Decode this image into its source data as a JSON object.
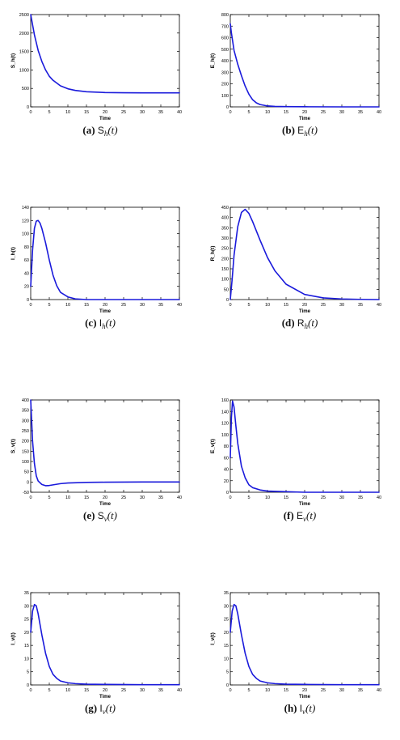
{
  "chart_data": [
    {
      "type": "line",
      "xlabel": "Time",
      "ylabel": "S_h(t)",
      "xlim": [
        0,
        40
      ],
      "ylim": [
        0,
        2500
      ],
      "xticks": [
        0,
        5,
        10,
        15,
        20,
        25,
        30,
        35,
        40
      ],
      "yticks": [
        0,
        500,
        1000,
        1500,
        2000,
        2500
      ],
      "ytick_labels": [
        "0",
        "500",
        "1000",
        "1500",
        "2000",
        "2500"
      ],
      "x": [
        0,
        1,
        2,
        3,
        4,
        5,
        6,
        8,
        10,
        12,
        15,
        20,
        25,
        30,
        35,
        40
      ],
      "y": [
        2500,
        1950,
        1530,
        1230,
        1000,
        830,
        720,
        570,
        490,
        445,
        410,
        388,
        382,
        380,
        380,
        380
      ],
      "caption": {
        "label": "(a)",
        "symbol": "S",
        "sub": "h",
        "arg": "(t)"
      }
    },
    {
      "type": "line",
      "xlabel": "Time",
      "ylabel": "E_h(t)",
      "xlim": [
        0,
        40
      ],
      "ylim": [
        0,
        800
      ],
      "xticks": [
        0,
        5,
        10,
        15,
        20,
        25,
        30,
        35,
        40
      ],
      "yticks": [
        0,
        100,
        200,
        300,
        400,
        500,
        600,
        700,
        800
      ],
      "ytick_labels": [
        "0",
        "100",
        "200",
        "300",
        "400",
        "500",
        "600",
        "700",
        "800"
      ],
      "x": [
        0,
        0.3,
        1,
        2,
        3,
        4,
        5,
        6,
        7,
        8,
        10,
        12,
        15,
        20,
        30,
        40
      ],
      "y": [
        720,
        640,
        490,
        370,
        270,
        180,
        110,
        62,
        35,
        20,
        8,
        4,
        2,
        1,
        0,
        0
      ],
      "caption": {
        "label": "(b)",
        "symbol": "E",
        "sub": "h",
        "arg": "(t)"
      }
    },
    {
      "type": "line",
      "xlabel": "Time",
      "ylabel": "I_h(t)",
      "xlim": [
        0,
        40
      ],
      "ylim": [
        0,
        140
      ],
      "xticks": [
        0,
        5,
        10,
        15,
        20,
        25,
        30,
        35,
        40
      ],
      "yticks": [
        0,
        20,
        40,
        60,
        80,
        100,
        120,
        140
      ],
      "ytick_labels": [
        "0",
        "20",
        "40",
        "60",
        "80",
        "100",
        "120",
        "140"
      ],
      "x": [
        0,
        0.5,
        1,
        1.5,
        2,
        2.5,
        3,
        4,
        5,
        6,
        7,
        8,
        10,
        12,
        15,
        20,
        30,
        40
      ],
      "y": [
        20,
        75,
        108,
        119,
        120,
        116,
        108,
        86,
        60,
        37,
        21,
        11,
        4,
        1,
        0,
        0,
        0,
        0
      ],
      "caption": {
        "label": "(c)",
        "symbol": "I",
        "sub": "h",
        "arg": "(t)"
      }
    },
    {
      "type": "line",
      "xlabel": "Time",
      "ylabel": "R_h(t)",
      "xlim": [
        0,
        40
      ],
      "ylim": [
        0,
        450
      ],
      "xticks": [
        0,
        5,
        10,
        15,
        20,
        25,
        30,
        35,
        40
      ],
      "yticks": [
        0,
        50,
        100,
        150,
        200,
        250,
        300,
        350,
        400,
        450
      ],
      "ytick_labels": [
        "0",
        "50",
        "100",
        "150",
        "200",
        "250",
        "300",
        "350",
        "400",
        "450"
      ],
      "x": [
        0,
        0.5,
        1,
        2,
        3,
        4,
        5,
        6,
        8,
        10,
        12,
        15,
        20,
        25,
        30,
        35,
        40
      ],
      "y": [
        0,
        100,
        215,
        355,
        425,
        440,
        420,
        380,
        290,
        205,
        140,
        75,
        25,
        8,
        3,
        1,
        0
      ],
      "caption": {
        "label": "(d)",
        "symbol": "R",
        "sub": "h",
        "arg": "(t)"
      }
    },
    {
      "type": "line",
      "xlabel": "Time",
      "ylabel": "S_v(t)",
      "xlim": [
        0,
        40
      ],
      "ylim": [
        -50,
        400
      ],
      "xticks": [
        0,
        5,
        10,
        15,
        20,
        25,
        30,
        35,
        40
      ],
      "yticks": [
        -50,
        0,
        50,
        100,
        150,
        200,
        250,
        300,
        350,
        400
      ],
      "ytick_labels": [
        "-50",
        "0",
        "50",
        "100",
        "150",
        "200",
        "250",
        "300",
        "350",
        "400"
      ],
      "x": [
        0,
        0.5,
        1,
        1.5,
        2,
        3,
        4,
        5,
        6,
        8,
        10,
        15,
        20,
        30,
        40
      ],
      "y": [
        400,
        200,
        90,
        30,
        5,
        -12,
        -18,
        -17,
        -14,
        -8,
        -5,
        -2,
        -1,
        0,
        0
      ],
      "caption": {
        "label": "(e)",
        "symbol": "S",
        "sub": "v",
        "arg": "(t)"
      }
    },
    {
      "type": "line",
      "xlabel": "Time",
      "ylabel": "E_v(t)",
      "xlim": [
        0,
        40
      ],
      "ylim": [
        0,
        160
      ],
      "xticks": [
        0,
        5,
        10,
        15,
        20,
        25,
        30,
        35,
        40
      ],
      "yticks": [
        0,
        20,
        40,
        60,
        80,
        100,
        120,
        140,
        160
      ],
      "ytick_labels": [
        "0",
        "20",
        "40",
        "60",
        "80",
        "100",
        "120",
        "140",
        "160"
      ],
      "x": [
        0,
        0.3,
        0.6,
        1,
        1.5,
        2,
        3,
        4,
        5,
        6,
        8,
        10,
        15,
        20,
        30,
        40
      ],
      "y": [
        60,
        130,
        158,
        148,
        115,
        85,
        45,
        25,
        13,
        8,
        4,
        2,
        1,
        0,
        0,
        0
      ],
      "caption": {
        "label": "(f)",
        "symbol": "E",
        "sub": "v",
        "arg": "(t)"
      }
    },
    {
      "type": "line",
      "xlabel": "Time",
      "ylabel": "I_v(t)",
      "xlim": [
        0,
        40
      ],
      "ylim": [
        0,
        35
      ],
      "xticks": [
        0,
        5,
        10,
        15,
        20,
        25,
        30,
        35,
        40
      ],
      "yticks": [
        0,
        5,
        10,
        15,
        20,
        25,
        30,
        35
      ],
      "ytick_labels": [
        "0",
        "5",
        "10",
        "15",
        "20",
        "25",
        "30",
        "35"
      ],
      "x": [
        0,
        0.5,
        1,
        1.5,
        2,
        3,
        4,
        5,
        6,
        7,
        8,
        10,
        12,
        15,
        20,
        30,
        40
      ],
      "y": [
        20,
        28,
        30.5,
        30,
        27,
        19,
        12,
        7,
        4,
        2.5,
        1.5,
        0.8,
        0.5,
        0.3,
        0.2,
        0.1,
        0.1
      ],
      "caption": {
        "label": "(g)",
        "symbol": "I",
        "sub": "v",
        "arg": "(t)"
      }
    },
    {
      "type": "line",
      "xlabel": "Time",
      "ylabel": "I_v(t)",
      "xlim": [
        0,
        40
      ],
      "ylim": [
        0,
        35
      ],
      "xticks": [
        0,
        5,
        10,
        15,
        20,
        25,
        30,
        35,
        40
      ],
      "yticks": [
        0,
        5,
        10,
        15,
        20,
        25,
        30,
        35
      ],
      "ytick_labels": [
        "0",
        "5",
        "10",
        "15",
        "20",
        "25",
        "30",
        "35"
      ],
      "x": [
        0,
        0.5,
        1,
        1.5,
        2,
        3,
        4,
        5,
        6,
        7,
        8,
        10,
        12,
        15,
        20,
        30,
        40
      ],
      "y": [
        20,
        28,
        30.5,
        30,
        27,
        19,
        12,
        7,
        4,
        2.5,
        1.5,
        0.8,
        0.5,
        0.3,
        0.2,
        0.1,
        0.1
      ],
      "caption": {
        "label": "(h)",
        "symbol": "I",
        "sub": "v",
        "arg": "(t)"
      }
    }
  ],
  "line_color": "#1a1adb"
}
